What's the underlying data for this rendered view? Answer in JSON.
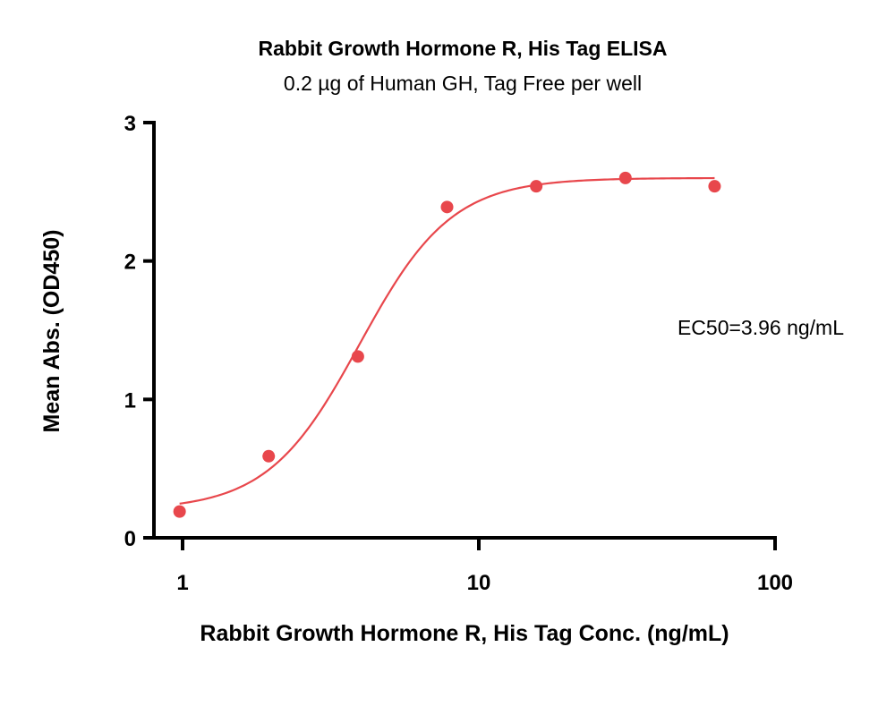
{
  "chart_data": {
    "type": "scatter",
    "title": "Rabbit Growth Hormone R, His Tag ELISA",
    "subtitle": "0.2 µg of Human GH, Tag Free per well",
    "xlabel": "Rabbit Growth Hormone R, His Tag Conc. (ng/mL)",
    "ylabel": "Mean Abs. (OD450)",
    "x_scale": "log",
    "xlim": [
      1,
      100
    ],
    "ylim": [
      0,
      3
    ],
    "x_ticks": [
      1,
      10,
      100
    ],
    "x_tick_labels": [
      "1",
      "10",
      "100"
    ],
    "y_ticks": [
      0,
      1,
      2,
      3
    ],
    "y_tick_labels": [
      "0",
      "1",
      "2",
      "3"
    ],
    "grid": false,
    "color": "#e8474c",
    "series": [
      {
        "x": [
          0.977,
          1.953,
          3.906,
          7.813,
          15.625,
          31.25,
          62.5
        ],
        "y": [
          0.19,
          0.59,
          1.31,
          2.39,
          2.54,
          2.6,
          2.54
        ]
      }
    ],
    "fit": {
      "model": "4PL",
      "bottom": 0.2,
      "top": 2.6,
      "ec50": 3.96,
      "hill": 2.8,
      "x_range": [
        0.977,
        62.5
      ]
    },
    "annotations": [
      {
        "text": "EC50=3.96 ng/mL"
      }
    ]
  }
}
